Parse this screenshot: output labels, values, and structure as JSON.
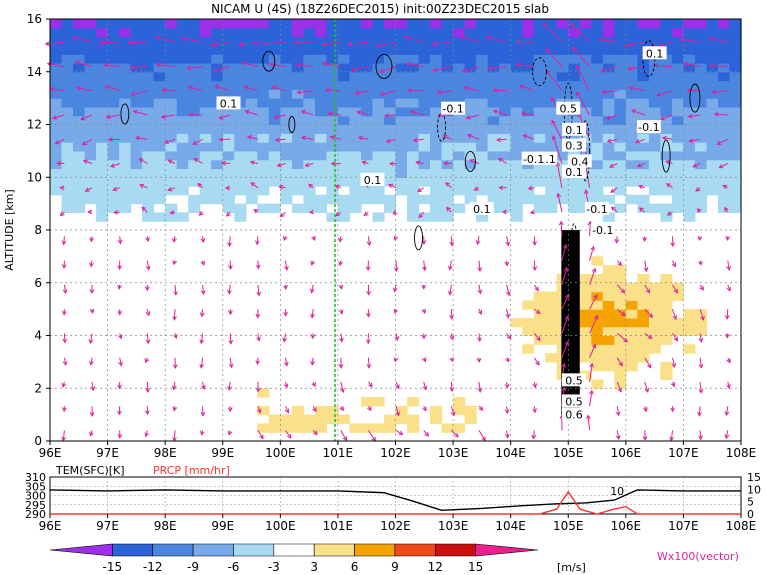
{
  "title": "NICAM  U  (4S)  (18Z26DEC2015)  init:00Z23DEC2015  slab",
  "chart_data": [
    {
      "type": "heatmap",
      "title": "NICAM  U  (4S)  (18Z26DEC2015)  init:00Z23DEC2015  slab",
      "ylabel": "ALTITUDE [km]",
      "xlim": [
        96,
        108
      ],
      "ylim": [
        0,
        16
      ],
      "x_ticks": [
        "96E",
        "97E",
        "98E",
        "99E",
        "100E",
        "101E",
        "102E",
        "103E",
        "104E",
        "105E",
        "106E",
        "107E",
        "108E"
      ],
      "y_ticks": [
        "0",
        "2",
        "4",
        "6",
        "8",
        "10",
        "12",
        "14",
        "16"
      ],
      "grid": true,
      "marker_line_lon": 100.95,
      "contour_labels": [
        "0.1",
        "-0.1",
        "0.1",
        "-0.1",
        "-0.1",
        "0.1",
        "0.1",
        "-0.1",
        "-0.1",
        "0.5",
        "0.1",
        "-0.1",
        "0.3",
        "0.1",
        "0.4",
        "0.5",
        "0.5",
        "0.6"
      ],
      "vector_label": "Wx100(vector)"
    },
    {
      "type": "line",
      "series": [
        {
          "name": "TEM(SFC)[K]",
          "color": "#000000",
          "x": [
            96,
            97,
            98,
            99,
            100,
            101,
            101.8,
            102.3,
            102.8,
            103.5,
            104.2,
            104.8,
            105.3,
            105.8,
            106.2,
            107,
            108
          ],
          "values": [
            303,
            302.5,
            303,
            302.5,
            302.5,
            302.5,
            301.5,
            297,
            292,
            293,
            294.5,
            295.5,
            296,
            297.5,
            303,
            302.5,
            302.5
          ]
        },
        {
          "name": "PRCP [mm/hr]",
          "color": "#ff3333",
          "x": [
            96,
            104.5,
            104.8,
            105.0,
            105.2,
            105.5,
            105.8,
            106.0,
            106.2,
            108
          ],
          "values": [
            0,
            0,
            2,
            9,
            2,
            0,
            2,
            3,
            0,
            0
          ]
        }
      ],
      "left_axis_ticks": [
        "290",
        "295",
        "300",
        "305",
        "310"
      ],
      "right_axis_ticks": [
        "0",
        "5",
        "10",
        "15"
      ],
      "ylim_left": [
        290,
        310
      ],
      "ylim_right": [
        0,
        15
      ],
      "xlim": [
        96,
        108
      ],
      "x_ticks": [
        "96E",
        "97E",
        "98E",
        "99E",
        "100E",
        "101E",
        "102E",
        "103E",
        "104E",
        "105E",
        "106E",
        "107E",
        "108E"
      ],
      "labels": {
        "tem": "TEM(SFC)[K]",
        "prcp": "PRCP [mm/hr]"
      },
      "annotation": "10"
    },
    {
      "type": "colorbar",
      "ticks": [
        "-15",
        "-12",
        "-9",
        "-6",
        "-3",
        "3",
        "6",
        "9",
        "12",
        "15"
      ],
      "unit": "[m/s]",
      "colors": [
        "#9b30e8",
        "#2b63d8",
        "#4a86e0",
        "#78aaea",
        "#a8dbf2",
        "#ffffff",
        "#fbe08a",
        "#f5a300",
        "#ee4a1a",
        "#cc1010",
        "#b00000",
        "#ee2090"
      ]
    }
  ]
}
